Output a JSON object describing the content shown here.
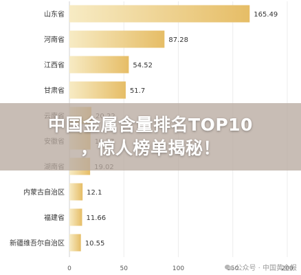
{
  "chart_data": {
    "type": "bar",
    "orientation": "horizontal",
    "categories": [
      "山东省",
      "河南省",
      "江西省",
      "甘肃省",
      "云南省",
      "安徽省",
      "湖南省",
      "内蒙古自治区",
      "福建省",
      "新疆维吾尔自治区"
    ],
    "values": [
      165.49,
      87.28,
      54.52,
      51.7,
      20.22,
      19.37,
      19.02,
      12.1,
      11.66,
      10.55
    ],
    "value_labels": [
      "165.49",
      "87.28",
      "54.52",
      "51.7",
      "20.22",
      "19.37",
      "19.02",
      "12.1",
      "11.66",
      "10.55"
    ],
    "xlim": [
      0,
      200
    ],
    "x_ticks": [
      "0",
      "50",
      "100",
      "150",
      "200"
    ],
    "grid": true,
    "bar_color_start": "#f7ebc4",
    "bar_color_end": "#e6bd66"
  },
  "banner": {
    "line1": "中国金属含量排名TOP10",
    "line2": "，惊人榜单揭秘！"
  },
  "watermark": {
    "text": "公众号 · 中国黄金报",
    "icon": "wechat-icon"
  }
}
